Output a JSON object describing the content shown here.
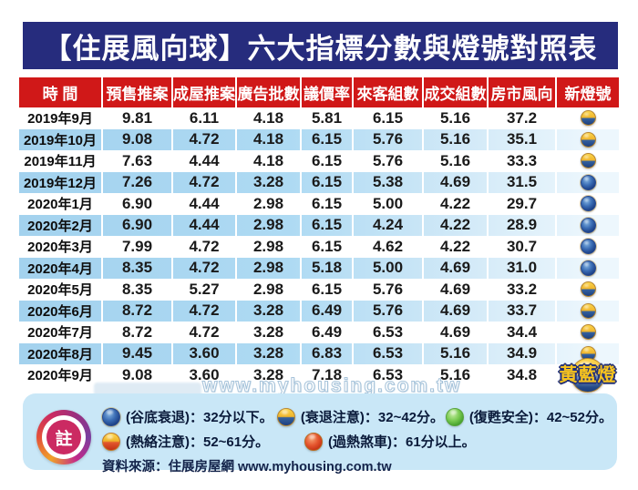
{
  "page": {
    "title_bar": "【住展風向球】六大指標分數與燈號對照表"
  },
  "chart_data": {
    "type": "table",
    "title": "【住展風向球】六大指標分數與燈號對照表",
    "columns": [
      "時 間",
      "預售推案",
      "成屋推案",
      "廣告批數",
      "議價率",
      "來客組數",
      "成交組數",
      "房市風向",
      "新燈號"
    ],
    "rows": [
      {
        "time": "2019年9月",
        "values": [
          "9.81",
          "6.11",
          "4.18",
          "5.81",
          "6.15",
          "5.16",
          "37.2"
        ],
        "light": "yellow-blue",
        "light_name": "黃藍燈"
      },
      {
        "time": "2019年10月",
        "values": [
          "9.08",
          "4.72",
          "4.18",
          "6.15",
          "5.76",
          "5.16",
          "35.1"
        ],
        "light": "yellow-blue",
        "light_name": "黃藍燈"
      },
      {
        "time": "2019年11月",
        "values": [
          "7.63",
          "4.44",
          "4.18",
          "6.15",
          "5.76",
          "5.16",
          "33.3"
        ],
        "light": "yellow-blue",
        "light_name": "黃藍燈"
      },
      {
        "time": "2019年12月",
        "values": [
          "7.26",
          "4.72",
          "3.28",
          "6.15",
          "5.38",
          "4.69",
          "31.5"
        ],
        "light": "blue",
        "light_name": "藍燈"
      },
      {
        "time": "2020年1月",
        "values": [
          "6.90",
          "4.44",
          "2.98",
          "6.15",
          "5.00",
          "4.22",
          "29.7"
        ],
        "light": "blue",
        "light_name": "藍燈"
      },
      {
        "time": "2020年2月",
        "values": [
          "6.90",
          "4.44",
          "2.98",
          "6.15",
          "4.24",
          "4.22",
          "28.9"
        ],
        "light": "blue",
        "light_name": "藍燈"
      },
      {
        "time": "2020年3月",
        "values": [
          "7.99",
          "4.72",
          "2.98",
          "6.15",
          "4.62",
          "4.22",
          "30.7"
        ],
        "light": "blue",
        "light_name": "藍燈"
      },
      {
        "time": "2020年4月",
        "values": [
          "8.35",
          "4.72",
          "2.98",
          "5.18",
          "5.00",
          "4.69",
          "31.0"
        ],
        "light": "blue",
        "light_name": "藍燈"
      },
      {
        "time": "2020年5月",
        "values": [
          "8.35",
          "5.27",
          "2.98",
          "6.15",
          "5.76",
          "4.69",
          "33.2"
        ],
        "light": "yellow-blue",
        "light_name": "黃藍燈"
      },
      {
        "time": "2020年6月",
        "values": [
          "8.72",
          "4.72",
          "3.28",
          "6.49",
          "5.76",
          "4.69",
          "33.7"
        ],
        "light": "yellow-blue",
        "light_name": "黃藍燈"
      },
      {
        "time": "2020年7月",
        "values": [
          "8.72",
          "4.72",
          "3.28",
          "6.49",
          "6.53",
          "4.69",
          "34.4"
        ],
        "light": "yellow-blue",
        "light_name": "黃藍燈"
      },
      {
        "time": "2020年8月",
        "values": [
          "9.45",
          "3.60",
          "3.28",
          "6.83",
          "6.53",
          "5.16",
          "34.9"
        ],
        "light": "yellow-blue",
        "light_name": "黃藍燈"
      },
      {
        "time": "2020年9月",
        "values": [
          "9.08",
          "3.60",
          "3.28",
          "7.18",
          "6.53",
          "5.16",
          "34.8"
        ],
        "light": "yellow-blue",
        "light_name": "黃藍燈",
        "large": true,
        "light_label": "黃藍燈"
      }
    ]
  },
  "watermark": {
    "url_text": "www.myhousing.com.tw"
  },
  "legend": {
    "note_label": "註",
    "line1": [
      {
        "light": "blue",
        "text": "(谷底衰退)：32分以下。"
      },
      {
        "light": "yellow-blue",
        "text": "(衰退注意)：32~42分。"
      },
      {
        "light": "green",
        "text": "(復甦安全)：42~52分。"
      }
    ],
    "line2": [
      {
        "light": "yellow-red",
        "text": "(熱絡注意)：52~61分。"
      },
      {
        "light": "red",
        "text": "(過熱煞車)：61分以上。"
      }
    ],
    "source": "資料來源：住展房屋網 www.myhousing.com.tw"
  },
  "colors": {
    "title_bg": "#262c7d",
    "header_bg": "#d01818",
    "stripe_blue": "#a6d5f0",
    "legend_bg": "#c9e7f7",
    "label_gold": "#f8c41e"
  }
}
